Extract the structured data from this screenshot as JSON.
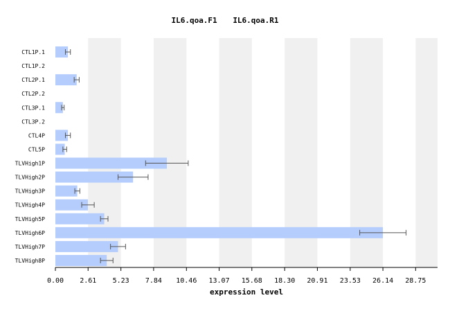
{
  "chart_data": {
    "type": "bar",
    "orientation": "horizontal",
    "title_parts": [
      "IL6.qoa.F1",
      "IL6.qoa.R1"
    ],
    "xlabel": "expression level",
    "ylabel": "",
    "xlim": [
      0,
      30.5
    ],
    "x_ticks": [
      0.0,
      2.61,
      5.23,
      7.84,
      10.46,
      13.07,
      15.68,
      18.3,
      20.91,
      23.53,
      26.14,
      28.75
    ],
    "x_tick_labels": [
      "0.00",
      "2.61",
      "5.23",
      "7.84",
      "10.46",
      "13.07",
      "15.68",
      "18.30",
      "20.91",
      "23.53",
      "26.14",
      "28.75"
    ],
    "categories": [
      "CTL1P.1",
      "CTL1P.2",
      "CTL2P.1",
      "CTL2P.2",
      "CTL3P.1",
      "CTL3P.2",
      "CTL4P",
      "CTL5P",
      "TLVHigh1P",
      "TLVHigh2P",
      "TLVHigh3P",
      "TLVHigh4P",
      "TLVHigh5P",
      "TLVHigh6P",
      "TLVHigh7P",
      "TLVHigh8P"
    ],
    "values": [
      1.0,
      null,
      1.7,
      null,
      0.6,
      null,
      1.0,
      0.75,
      8.9,
      6.2,
      1.75,
      2.6,
      3.9,
      26.14,
      5.0,
      4.1
    ],
    "errors": [
      0.2,
      null,
      0.2,
      null,
      0.1,
      null,
      0.2,
      0.15,
      1.7,
      1.2,
      0.2,
      0.5,
      0.3,
      1.85,
      0.6,
      0.5
    ],
    "colors": {
      "bar": "#b4cdfc",
      "band": "#f0f0f0",
      "error": "#555555",
      "axis": "#000000"
    }
  }
}
